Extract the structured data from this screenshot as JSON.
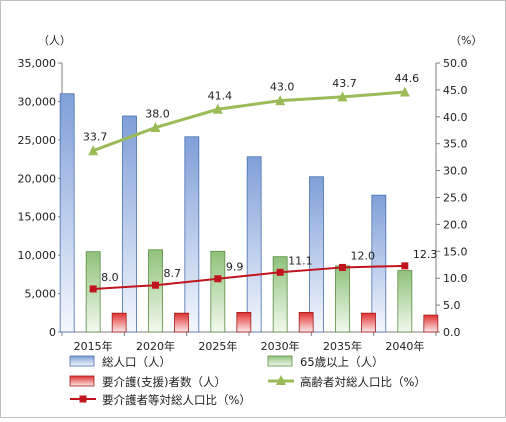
{
  "chart_data": {
    "type": "bar",
    "categories": [
      "2015年",
      "2020年",
      "2025年",
      "2030年",
      "2035年",
      "2040年"
    ],
    "left_unit": "（人）",
    "right_unit": "（%）",
    "y_left": {
      "min": 0,
      "max": 35000,
      "step": 5000,
      "ticks": [
        "0",
        "5,000",
        "10,000",
        "15,000",
        "20,000",
        "25,000",
        "30,000",
        "35,000"
      ]
    },
    "y_right": {
      "min": 0,
      "max": 50,
      "step": 5,
      "ticks": [
        "0.0",
        "5.0",
        "10.0",
        "15.0",
        "20.0",
        "25.0",
        "30.0",
        "35.0",
        "40.0",
        "45.0",
        "50.0"
      ]
    },
    "series": [
      {
        "name": "総人口（人）",
        "kind": "bar",
        "axis": "left",
        "color": "#7f9fd8",
        "values": [
          31000,
          28100,
          25400,
          22800,
          20200,
          17800
        ]
      },
      {
        "name": "65歳以上（人）",
        "kind": "bar",
        "axis": "left",
        "color": "#8fc27a",
        "values": [
          10450,
          10700,
          10500,
          9800,
          8600,
          8000
        ]
      },
      {
        "name": "要介護(支援)者数（人）",
        "kind": "bar",
        "axis": "left",
        "color": "#e03030",
        "values": [
          2450,
          2450,
          2550,
          2550,
          2450,
          2200
        ]
      },
      {
        "name": "高齢者対総人口比（%）",
        "kind": "line",
        "axis": "right",
        "color": "#9bbb59",
        "marker": "triangle",
        "values": [
          33.7,
          38.0,
          41.4,
          43.0,
          43.7,
          44.6
        ],
        "labels": [
          "33.7",
          "38.0",
          "41.4",
          "43.0",
          "43.7",
          "44.6"
        ]
      },
      {
        "name": "要介護者等対総人口比（%）",
        "kind": "line",
        "axis": "right",
        "color": "#c0141e",
        "marker": "square",
        "values": [
          8.0,
          8.7,
          9.9,
          11.1,
          12.0,
          12.3
        ],
        "labels": [
          "8.0",
          "8.7",
          "9.9",
          "11.1",
          "12.0",
          "12.3"
        ]
      }
    ],
    "legend": {
      "position": "bottom",
      "order": [
        0,
        1,
        2,
        3,
        4
      ]
    },
    "grid": false
  }
}
